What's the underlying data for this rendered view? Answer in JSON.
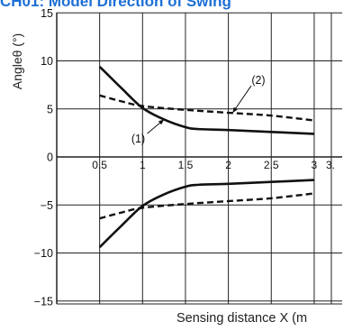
{
  "header": {
    "title": "CH01: Model Direction of Swing"
  },
  "chart_data": {
    "type": "line",
    "title": "CH01: Model Direction of Swing",
    "xlabel": "Sensing distance X (m",
    "ylabel": "Angleθ (°)",
    "xlim": [
      0,
      3.2
    ],
    "ylim": [
      -15.5,
      15
    ],
    "x_ticks": [
      {
        "value": 0.5,
        "label": "0.5"
      },
      {
        "value": 1,
        "label": "1"
      },
      {
        "value": 1.5,
        "label": "1.5"
      },
      {
        "value": 2,
        "label": "2"
      },
      {
        "value": 2.5,
        "label": "2.5"
      },
      {
        "value": 3,
        "label": "3"
      },
      {
        "value": 3.2,
        "label": "3."
      }
    ],
    "y_ticks": [
      {
        "value": 15,
        "label": "15"
      },
      {
        "value": 10,
        "label": "10"
      },
      {
        "value": 5,
        "label": "5"
      },
      {
        "value": 0,
        "label": "0"
      },
      {
        "value": -5,
        "label": "−5"
      },
      {
        "value": -10,
        "label": "−10"
      },
      {
        "value": -15,
        "label": "−15"
      }
    ],
    "grid": true,
    "series": [
      {
        "name": "(1)",
        "style": "solid",
        "x": [
          0.5,
          0.75,
          1.0,
          1.25,
          1.5,
          1.65,
          2.0,
          2.5,
          3.0
        ],
        "y": [
          9.4,
          7.2,
          5.1,
          3.9,
          3.1,
          2.9,
          2.8,
          2.6,
          2.4
        ]
      },
      {
        "name": "(1)",
        "style": "solid",
        "x": [
          0.5,
          0.75,
          1.0,
          1.25,
          1.5,
          1.65,
          2.0,
          2.5,
          3.0
        ],
        "y": [
          -9.4,
          -7.2,
          -5.1,
          -3.9,
          -3.1,
          -2.9,
          -2.8,
          -2.6,
          -2.4
        ]
      },
      {
        "name": "(2)",
        "style": "dashed",
        "x": [
          0.5,
          0.75,
          1.0,
          1.5,
          2.0,
          2.5,
          3.0
        ],
        "y": [
          6.4,
          5.8,
          5.3,
          4.9,
          4.6,
          4.3,
          3.8
        ]
      },
      {
        "name": "(2)",
        "style": "dashed",
        "x": [
          0.5,
          0.75,
          1.0,
          1.5,
          2.0,
          2.5,
          3.0
        ],
        "y": [
          -6.4,
          -5.8,
          -5.3,
          -4.9,
          -4.6,
          -4.3,
          -3.8
        ]
      }
    ],
    "annotations": [
      {
        "text": "(1)",
        "x": 0.95,
        "y": 1.5,
        "arrow_to": [
          1.25,
          3.9
        ]
      },
      {
        "text": "(2)",
        "x": 2.35,
        "y": 7.6,
        "arrow_to": [
          2.05,
          4.6
        ]
      }
    ],
    "colors": {
      "line": "#111111",
      "grid": "#222222",
      "title": "#1d6fd6"
    }
  }
}
